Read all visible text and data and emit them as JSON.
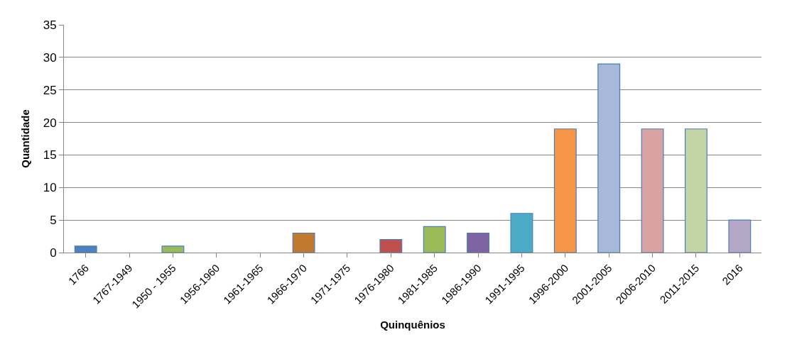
{
  "chart_data": {
    "type": "bar",
    "xlabel": "Quinquênios",
    "ylabel": "Quantidade",
    "categories": [
      "1766",
      "1767-1949",
      "1950 - 1955",
      "1956-1960",
      "1961-1965",
      "1966-1970",
      "1971-1975",
      "1976-1980",
      "1981-1985",
      "1986-1990",
      "1991-1995",
      "1996-2000",
      "2001-2005",
      "2006-2010",
      "2011-2015",
      "2016"
    ],
    "values": [
      1,
      0,
      1,
      0,
      0,
      3,
      0,
      2,
      4,
      3,
      6,
      19,
      29,
      19,
      19,
      5
    ],
    "colors": [
      "#4f81bd",
      null,
      "#9bbb59",
      null,
      null,
      "#c0792f",
      null,
      "#c0504d",
      "#9bbb59",
      "#8064a2",
      "#4bacc6",
      "#f79646",
      "#a7b9d9",
      "#d9a3a3",
      "#c3d5a4",
      "#b4a7c6"
    ],
    "ylim": [
      0,
      35
    ],
    "yticks": [
      0,
      5,
      10,
      15,
      20,
      25,
      30,
      35
    ],
    "grid": "y"
  }
}
